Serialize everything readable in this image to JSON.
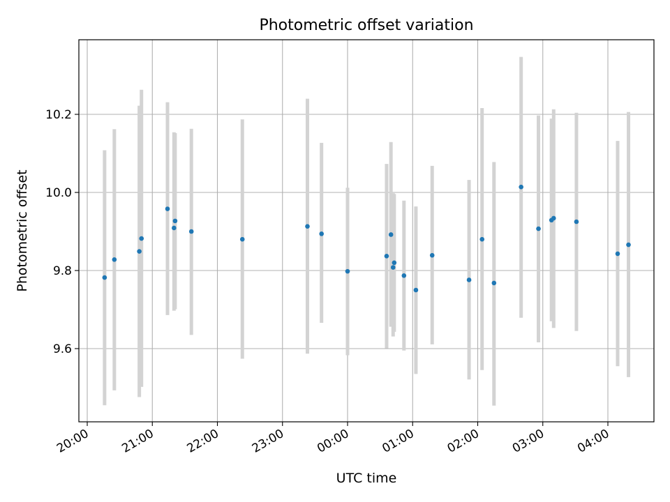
{
  "chart_data": {
    "type": "scatter",
    "title": "Photometric offset variation",
    "xlabel": "UTC time",
    "ylabel": "Photometric offset",
    "x_ticks": [
      "20:00",
      "21:00",
      "22:00",
      "23:00",
      "00:00",
      "01:00",
      "02:00",
      "03:00",
      "04:00"
    ],
    "y_ticks": [
      "9.6",
      "9.8",
      "10.0",
      "10.2"
    ],
    "grid": true,
    "colors": {
      "points": "#1f77b4",
      "errorbars": "#d3d3d3",
      "grid": "#b0b0b0"
    },
    "series": [
      {
        "points": [
          {
            "x": "20:16",
            "y": 9.782,
            "lo": 9.455,
            "hi": 10.108
          },
          {
            "x": "20:25",
            "y": 9.828,
            "lo": 9.493,
            "hi": 10.162
          },
          {
            "x": "20:48",
            "y": 9.849,
            "lo": 9.476,
            "hi": 10.222
          },
          {
            "x": "20:50",
            "y": 9.882,
            "lo": 9.502,
            "hi": 10.263
          },
          {
            "x": "21:14",
            "y": 9.958,
            "lo": 9.686,
            "hi": 10.231
          },
          {
            "x": "21:20",
            "y": 9.909,
            "lo": 9.697,
            "hi": 10.154
          },
          {
            "x": "21:21",
            "y": 9.927,
            "lo": 9.701,
            "hi": 10.152
          },
          {
            "x": "21:36",
            "y": 9.9,
            "lo": 9.635,
            "hi": 10.163
          },
          {
            "x": "22:23",
            "y": 9.88,
            "lo": 9.574,
            "hi": 10.187
          },
          {
            "x": "23:23",
            "y": 9.913,
            "lo": 9.587,
            "hi": 10.24
          },
          {
            "x": "23:36",
            "y": 9.894,
            "lo": 9.666,
            "hi": 10.127
          },
          {
            "x": "00:00",
            "y": 9.798,
            "lo": 9.583,
            "hi": 10.012
          },
          {
            "x": "00:36",
            "y": 9.837,
            "lo": 9.601,
            "hi": 10.073
          },
          {
            "x": "00:40",
            "y": 9.892,
            "lo": 9.656,
            "hi": 10.129
          },
          {
            "x": "00:42",
            "y": 9.808,
            "lo": 9.631,
            "hi": 9.998
          },
          {
            "x": "00:43",
            "y": 9.82,
            "lo": 9.643,
            "hi": 9.996
          },
          {
            "x": "00:52",
            "y": 9.787,
            "lo": 9.595,
            "hi": 9.979
          },
          {
            "x": "01:03",
            "y": 9.75,
            "lo": 9.535,
            "hi": 9.964
          },
          {
            "x": "01:18",
            "y": 9.839,
            "lo": 9.611,
            "hi": 10.068
          },
          {
            "x": "01:52",
            "y": 9.776,
            "lo": 9.521,
            "hi": 10.032
          },
          {
            "x": "02:04",
            "y": 9.88,
            "lo": 9.545,
            "hi": 10.216
          },
          {
            "x": "02:15",
            "y": 9.768,
            "lo": 9.454,
            "hi": 10.078
          },
          {
            "x": "02:40",
            "y": 10.014,
            "lo": 9.679,
            "hi": 10.347
          },
          {
            "x": "02:56",
            "y": 9.907,
            "lo": 9.616,
            "hi": 10.197
          },
          {
            "x": "03:08",
            "y": 9.929,
            "lo": 9.67,
            "hi": 10.189
          },
          {
            "x": "03:10",
            "y": 9.934,
            "lo": 9.653,
            "hi": 10.213
          },
          {
            "x": "03:31",
            "y": 9.925,
            "lo": 9.645,
            "hi": 10.204
          },
          {
            "x": "04:09",
            "y": 9.843,
            "lo": 9.555,
            "hi": 10.132
          },
          {
            "x": "04:19",
            "y": 9.866,
            "lo": 9.527,
            "hi": 10.206
          }
        ]
      }
    ]
  }
}
